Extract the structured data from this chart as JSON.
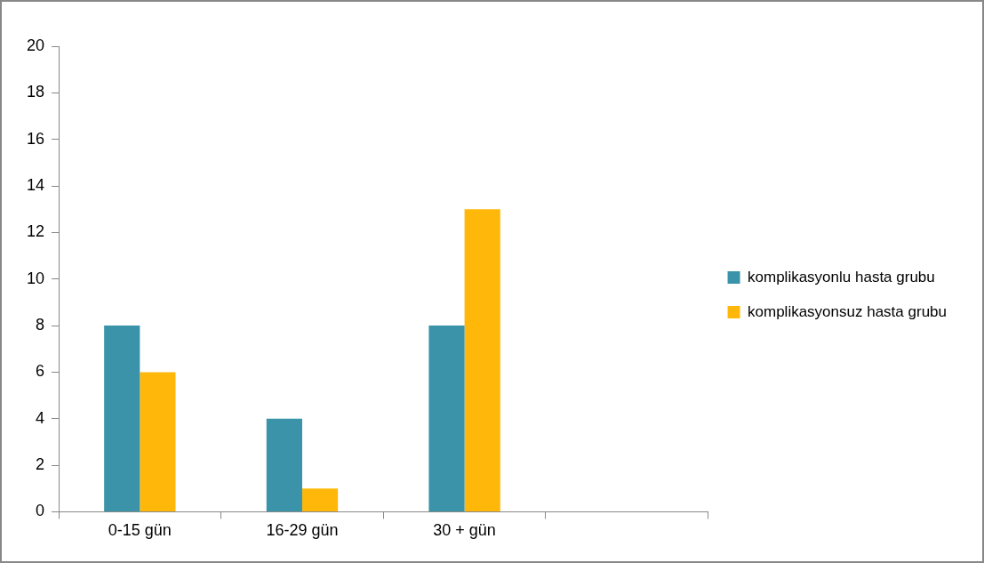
{
  "chart_data": {
    "type": "bar",
    "categories": [
      "0-15 gün",
      "16-29 gün",
      "30 + gün",
      null
    ],
    "series": [
      {
        "name": "komplikasyonlu hasta grubu",
        "color": "#3a93a8",
        "values": [
          8,
          4,
          8,
          null
        ]
      },
      {
        "name": "komplikasyonsuz hasta grubu",
        "color": "#ffb80a",
        "values": [
          6,
          1,
          13,
          null
        ]
      }
    ],
    "ylim": [
      0,
      20
    ],
    "yticks": [
      0,
      2,
      4,
      6,
      8,
      10,
      12,
      14,
      16,
      18,
      20
    ],
    "grid": false,
    "legend": "right"
  }
}
